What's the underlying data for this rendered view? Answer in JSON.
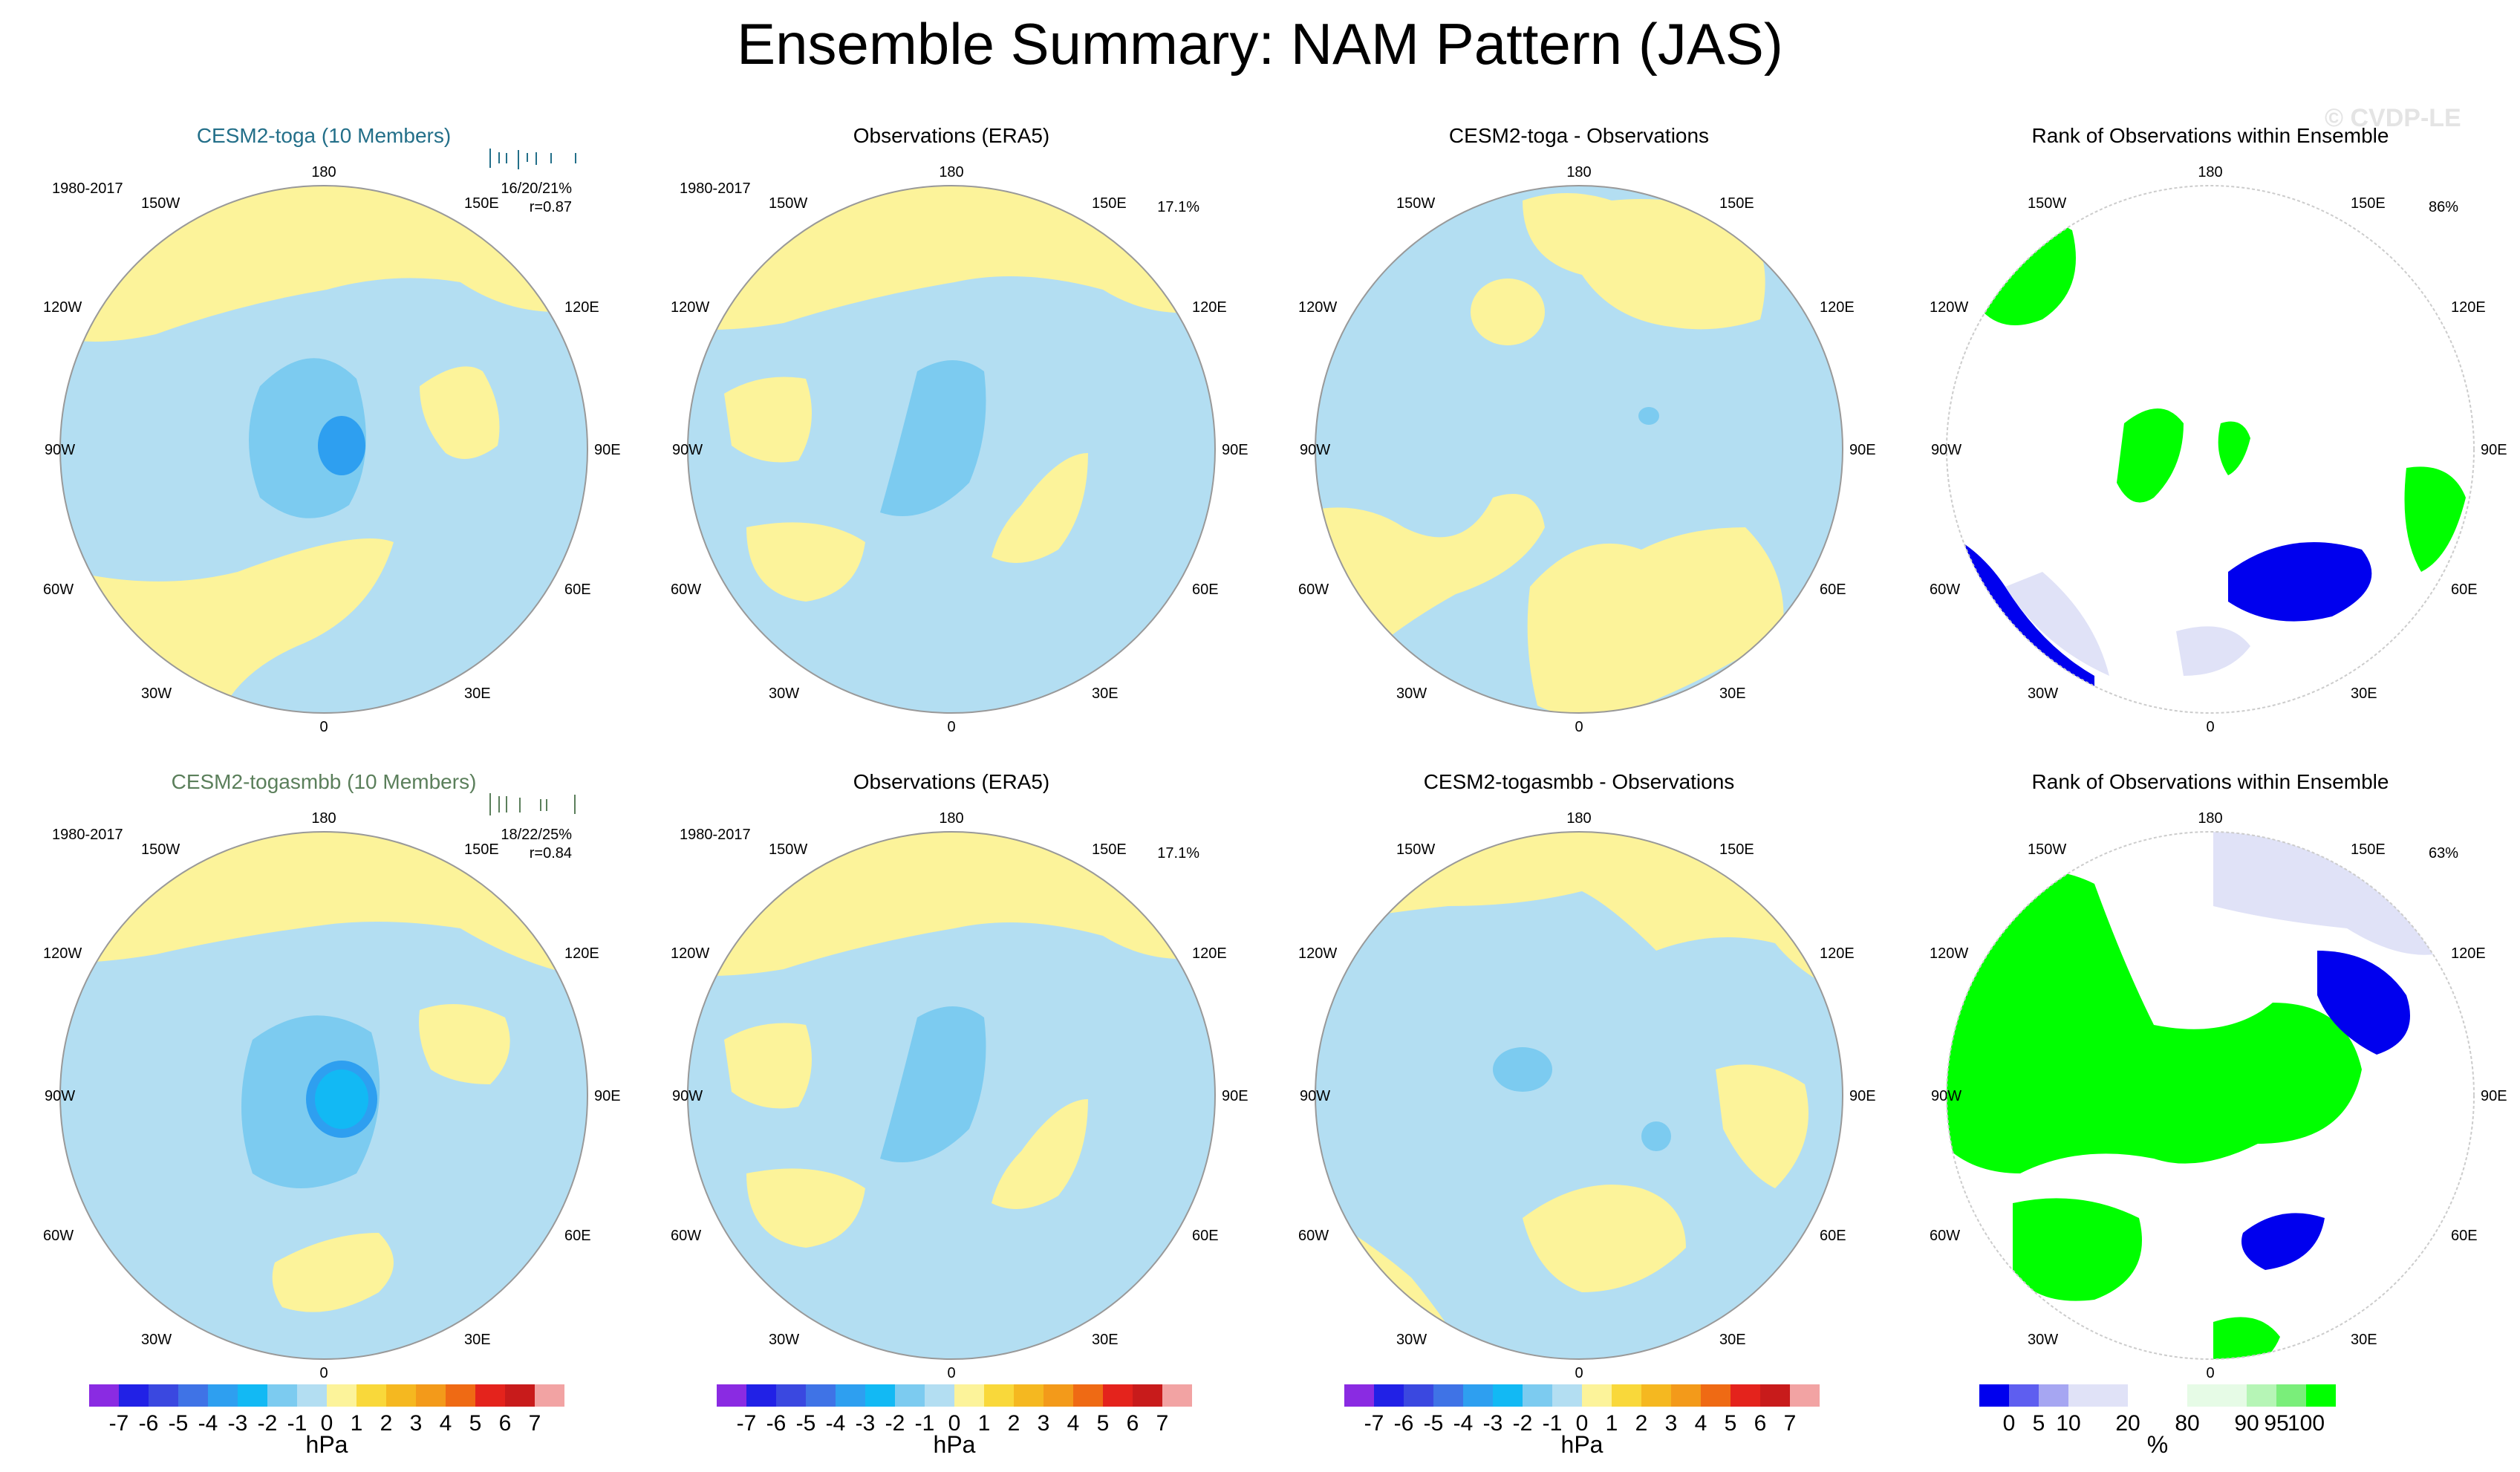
{
  "title": "Ensemble Summary: NAM Pattern (JAS)",
  "watermark": "© CVDP-LE",
  "colors": {
    "light_blue": "#b3def2",
    "blue_mid": "#7ccbf0",
    "blue_strong": "#5ab4ee",
    "blue_core": "#12b9f4",
    "yellow": "#fcf39a",
    "rank_green": "#00ff00",
    "rank_blue": "#0000ee",
    "rank_lavender": "#e0e2f7",
    "rank_mint": "#e6fbe6",
    "model_title_teal": "#236f89",
    "model_title_green": "#5b7f5b"
  },
  "lon_labels": {
    "top": "180",
    "bottom": "0",
    "left": "90W",
    "right": "90E",
    "ul1": "150W",
    "ul2": "120W",
    "ll1": "60W",
    "ll2": "30W",
    "ur1": "150E",
    "ur2": "120E",
    "lr1": "60E",
    "lr2": "30E"
  },
  "rows": [
    {
      "model": {
        "title": "CESM2-toga (10 Members)",
        "years": "1980-2017",
        "stats": "16/20/21%",
        "corr": "r=0.87"
      },
      "obs": {
        "title": "Observations (ERA5)",
        "years": "1980-2017",
        "pct": "17.1%"
      },
      "diff": {
        "title": "CESM2-toga - Observations"
      },
      "rank": {
        "title": "Rank of Observations within Ensemble",
        "pct": "86%"
      }
    },
    {
      "model": {
        "title": "CESM2-togasmbb (10 Members)",
        "years": "1980-2017",
        "stats": "18/22/25%",
        "corr": "r=0.84"
      },
      "obs": {
        "title": "Observations (ERA5)",
        "years": "1980-2017",
        "pct": "17.1%"
      },
      "diff": {
        "title": "CESM2-togasmbb - Observations"
      },
      "rank": {
        "title": "Rank of Observations within Ensemble",
        "pct": "63%"
      }
    }
  ],
  "colorbar_hpa": {
    "colors": [
      "#8a2be2",
      "#2121e6",
      "#3a48e0",
      "#3f73e6",
      "#2e9ff0",
      "#12b9f4",
      "#7ccbf0",
      "#b3def2",
      "#fcf39a",
      "#f9d83a",
      "#f5b820",
      "#f39a1a",
      "#ef6a14",
      "#e4231c",
      "#c81b1b",
      "#f2a3a3"
    ],
    "ticks": [
      "-7",
      "-6",
      "-5",
      "-4",
      "-3",
      "-2",
      "-1",
      "0",
      "1",
      "2",
      "3",
      "4",
      "5",
      "6",
      "7"
    ],
    "units": "hPa"
  },
  "colorbar_rank": {
    "colors": [
      "#0000ee",
      "#5e5ef0",
      "#a6a6f2",
      "#e0e2f7",
      "#e0e2f7",
      "#ffffff",
      "#ffffff",
      "#e6fbe6",
      "#e6fbe6",
      "#b6f5b6",
      "#7aee7a",
      "#00ff00"
    ],
    "ticks": [
      "0",
      "5",
      "10",
      "20",
      "80",
      "90",
      "95",
      "100"
    ],
    "units": "%"
  }
}
